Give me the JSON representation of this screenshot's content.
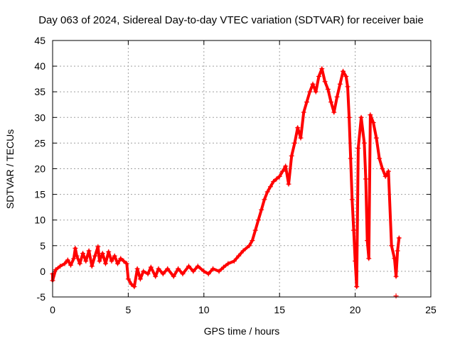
{
  "chart_data": {
    "type": "scatter",
    "title": "Day 063 of 2024, Sidereal Day-to-day VTEC variation (SDTVAR) for receiver baie",
    "xlabel": "GPS time / hours",
    "ylabel": "SDTVAR / TECUs",
    "xlim": [
      0,
      25
    ],
    "ylim": [
      -5,
      45
    ],
    "x_ticks": [
      0,
      5,
      10,
      15,
      20,
      25
    ],
    "y_ticks": [
      -5,
      0,
      5,
      10,
      15,
      20,
      25,
      30,
      35,
      40,
      45
    ],
    "grid": true,
    "marker": "+",
    "series": [
      {
        "name": "SDTVAR",
        "color": "#ff0000",
        "points": [
          [
            0.0,
            -0.5
          ],
          [
            0.0,
            -1.8
          ],
          [
            0.2,
            0.3
          ],
          [
            0.5,
            1.0
          ],
          [
            0.8,
            1.5
          ],
          [
            1.0,
            2.2
          ],
          [
            1.2,
            1.2
          ],
          [
            1.4,
            2.5
          ],
          [
            1.5,
            4.5
          ],
          [
            1.6,
            3.0
          ],
          [
            1.8,
            1.5
          ],
          [
            2.0,
            3.5
          ],
          [
            2.2,
            2.0
          ],
          [
            2.4,
            4.0
          ],
          [
            2.6,
            1.0
          ],
          [
            2.8,
            3.0
          ],
          [
            3.0,
            4.8
          ],
          [
            3.1,
            2.0
          ],
          [
            3.3,
            3.5
          ],
          [
            3.5,
            1.5
          ],
          [
            3.7,
            3.8
          ],
          [
            3.9,
            2.0
          ],
          [
            4.1,
            3.0
          ],
          [
            4.3,
            1.5
          ],
          [
            4.5,
            2.5
          ],
          [
            4.7,
            2.0
          ],
          [
            4.9,
            1.5
          ],
          [
            5.0,
            -1.5
          ],
          [
            5.2,
            -2.5
          ],
          [
            5.4,
            -3.0
          ],
          [
            5.6,
            0.5
          ],
          [
            5.8,
            -1.5
          ],
          [
            6.0,
            0.0
          ],
          [
            6.3,
            -0.5
          ],
          [
            6.5,
            0.8
          ],
          [
            6.8,
            -1.0
          ],
          [
            7.0,
            0.5
          ],
          [
            7.3,
            -0.5
          ],
          [
            7.6,
            0.5
          ],
          [
            8.0,
            -1.0
          ],
          [
            8.3,
            0.5
          ],
          [
            8.6,
            -0.5
          ],
          [
            9.0,
            1.0
          ],
          [
            9.3,
            0.0
          ],
          [
            9.6,
            1.0
          ],
          [
            10.0,
            0.0
          ],
          [
            10.3,
            -0.5
          ],
          [
            10.6,
            0.5
          ],
          [
            11.0,
            0.0
          ],
          [
            11.3,
            0.8
          ],
          [
            11.6,
            1.5
          ],
          [
            12.0,
            2.0
          ],
          [
            12.3,
            3.0
          ],
          [
            12.6,
            4.0
          ],
          [
            13.0,
            5.0
          ],
          [
            13.2,
            6.0
          ],
          [
            13.4,
            8.0
          ],
          [
            13.6,
            10.0
          ],
          [
            13.8,
            12.0
          ],
          [
            14.0,
            14.0
          ],
          [
            14.2,
            15.5
          ],
          [
            14.4,
            16.5
          ],
          [
            14.6,
            17.5
          ],
          [
            14.8,
            18.0
          ],
          [
            15.0,
            18.5
          ],
          [
            15.2,
            19.5
          ],
          [
            15.4,
            20.5
          ],
          [
            15.6,
            17.0
          ],
          [
            15.8,
            22.5
          ],
          [
            16.0,
            25.0
          ],
          [
            16.2,
            28.0
          ],
          [
            16.4,
            26.0
          ],
          [
            16.6,
            31.0
          ],
          [
            16.8,
            33.0
          ],
          [
            17.0,
            35.0
          ],
          [
            17.2,
            36.5
          ],
          [
            17.4,
            35.0
          ],
          [
            17.6,
            38.0
          ],
          [
            17.8,
            39.5
          ],
          [
            18.0,
            37.0
          ],
          [
            18.2,
            35.5
          ],
          [
            18.4,
            33.0
          ],
          [
            18.6,
            31.0
          ],
          [
            18.8,
            34.0
          ],
          [
            19.0,
            36.5
          ],
          [
            19.2,
            39.0
          ],
          [
            19.4,
            38.0
          ],
          [
            19.5,
            36.0
          ],
          [
            19.6,
            30.0
          ],
          [
            19.7,
            22.0
          ],
          [
            19.8,
            14.0
          ],
          [
            19.9,
            8.0
          ],
          [
            20.0,
            2.0
          ],
          [
            20.1,
            -3.0
          ],
          [
            20.2,
            24.0
          ],
          [
            20.4,
            30.0
          ],
          [
            20.6,
            25.0
          ],
          [
            20.7,
            18.0
          ],
          [
            20.8,
            6.0
          ],
          [
            20.9,
            2.5
          ],
          [
            21.0,
            30.5
          ],
          [
            21.2,
            29.0
          ],
          [
            21.4,
            26.0
          ],
          [
            21.6,
            22.0
          ],
          [
            21.8,
            20.0
          ],
          [
            22.0,
            18.5
          ],
          [
            22.2,
            19.5
          ],
          [
            22.4,
            5.0
          ],
          [
            22.6,
            2.5
          ],
          [
            22.7,
            -1.0
          ],
          [
            22.8,
            4.0
          ],
          [
            22.9,
            6.5
          ],
          [
            22.7,
            -4.8
          ]
        ]
      }
    ]
  }
}
